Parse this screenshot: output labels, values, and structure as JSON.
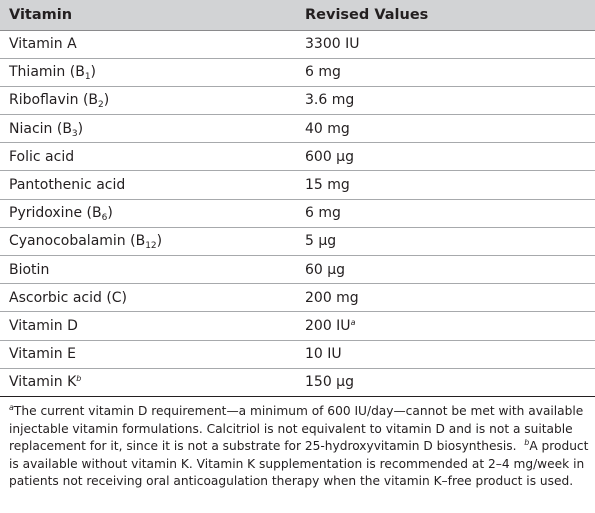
{
  "table": {
    "headers": [
      "Vitamin",
      "Revised Values"
    ],
    "rows": [
      {
        "name": "Vitamin A",
        "sub": "",
        "sup": "",
        "name_suffix": "",
        "value": "3300 IU",
        "value_sup": ""
      },
      {
        "name": "Thiamin (B",
        "sub": "1",
        "sup": "",
        "name_suffix": ")",
        "value": "6 mg",
        "value_sup": ""
      },
      {
        "name": "Riboflavin (B",
        "sub": "2",
        "sup": "",
        "name_suffix": ")",
        "value": "3.6 mg",
        "value_sup": ""
      },
      {
        "name": "Niacin (B",
        "sub": "3",
        "sup": "",
        "name_suffix": ")",
        "value": "40 mg",
        "value_sup": ""
      },
      {
        "name": "Folic acid",
        "sub": "",
        "sup": "",
        "name_suffix": "",
        "value": "600 µg",
        "value_sup": ""
      },
      {
        "name": "Pantothenic acid",
        "sub": "",
        "sup": "",
        "name_suffix": "",
        "value": "15 mg",
        "value_sup": ""
      },
      {
        "name": "Pyridoxine (B",
        "sub": "6",
        "sup": "",
        "name_suffix": ")",
        "value": "6 mg",
        "value_sup": ""
      },
      {
        "name": "Cyanocobalamin (B",
        "sub": "12",
        "sup": "",
        "name_suffix": ")",
        "value": "5 µg",
        "value_sup": ""
      },
      {
        "name": "Biotin",
        "sub": "",
        "sup": "",
        "name_suffix": "",
        "value": "60 µg",
        "value_sup": ""
      },
      {
        "name": "Ascorbic acid (C)",
        "sub": "",
        "sup": "",
        "name_suffix": "",
        "value": "200 mg",
        "value_sup": ""
      },
      {
        "name": "Vitamin D",
        "sub": "",
        "sup": "",
        "name_suffix": "",
        "value": "200 IU",
        "value_sup": "a"
      },
      {
        "name": "Vitamin E",
        "sub": "",
        "sup": "",
        "name_suffix": "",
        "value": "10 IU",
        "value_sup": ""
      },
      {
        "name": "Vitamin K",
        "sub": "",
        "sup": "b",
        "name_suffix": "",
        "value": "150 µg",
        "value_sup": ""
      }
    ]
  },
  "footnotes": {
    "a_mark": "a",
    "a_text": "The current vitamin D requirement—a minimum of 600 IU/day—cannot be met with available injectable vitamin formulations. Calcitriol is not equivalent to vitamin D and is not a suitable replacement for it, since it is not a substrate for 25-hydroxyvitamin D biosynthesis.",
    "b_mark": "b",
    "b_text": "A product is available without vitamin K. Vitamin K supplementation is recommended at 2–4 mg/week in patients not receiving oral anticoagulation therapy when the vitamin K–free product is used."
  },
  "colors": {
    "header_bg": "#d2d3d5",
    "text": "#231f20",
    "row_rule": "#a7a9ac"
  }
}
